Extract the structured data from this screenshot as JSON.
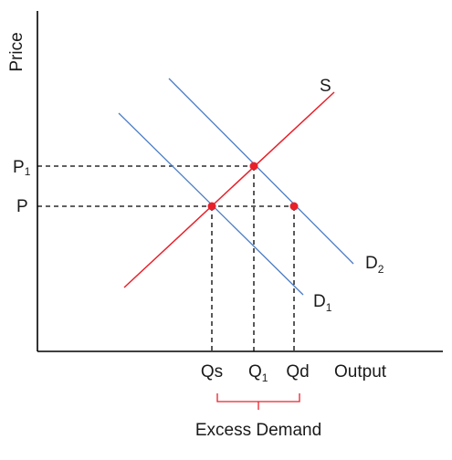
{
  "axes": {
    "y_label": "Price",
    "x_label": "Output"
  },
  "price_labels": {
    "p1": "P",
    "p1_sub": "1",
    "p": "P"
  },
  "quantity_labels": {
    "qs": "Qs",
    "q1": "Q",
    "q1_sub": "1",
    "qd": "Qd"
  },
  "curve_labels": {
    "supply": "S",
    "d1": "D",
    "d1_sub": "1",
    "d2": "D",
    "d2_sub": "2"
  },
  "annotation": {
    "excess_demand": "Excess Demand"
  },
  "colors": {
    "supply": "#e8202a",
    "demand": "#4a7cc4",
    "points": "#e8202a",
    "bracket": "#e8202a",
    "axis": "#000000",
    "guide": "#000000"
  }
}
